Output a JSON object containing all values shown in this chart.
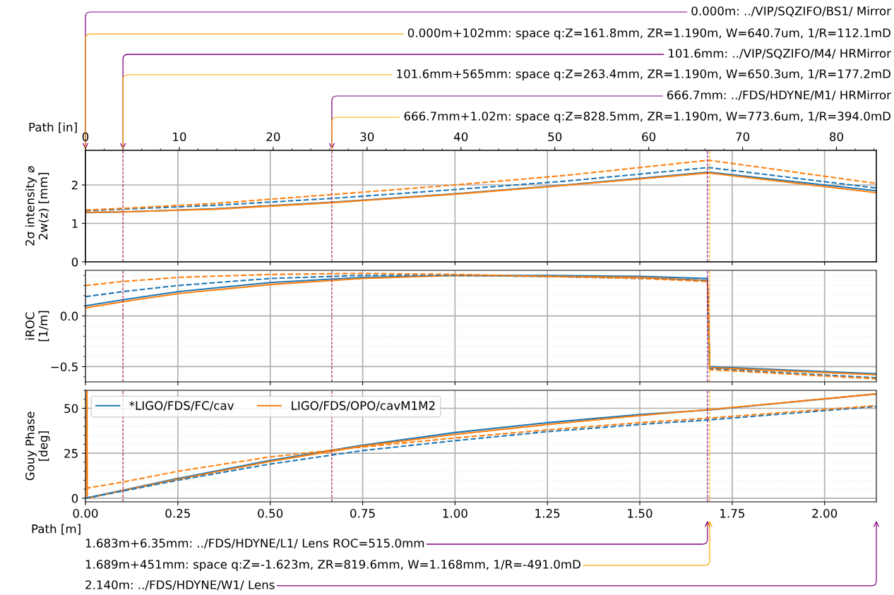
{
  "chart_data": [
    {
      "type": "line",
      "ylabel": "2σ intensity ⌀\n2w(z) [mm]",
      "x2label": "Path [in]",
      "xlim": [
        0,
        2.14
      ],
      "ylim": [
        0,
        2.9
      ],
      "yticks": [
        0,
        1,
        2
      ],
      "x2lim": [
        0,
        84.25
      ],
      "x2ticks": [
        0,
        10,
        20,
        30,
        40,
        50,
        60,
        70,
        80
      ],
      "tick_labels": "y",
      "grid": true,
      "legend": false,
      "series": [
        {
          "color": "#1f77b4",
          "line_style": "solid",
          "x": [
            0,
            0.1016,
            0.35,
            0.6667,
            1.0,
            1.3,
            1.683,
            1.689,
            2.14
          ],
          "values": [
            1.28,
            1.3,
            1.38,
            1.55,
            1.77,
            2.0,
            2.33,
            2.33,
            1.85
          ]
        },
        {
          "color": "#ff7f0e",
          "line_style": "solid",
          "x": [
            0,
            0.1016,
            0.35,
            0.6667,
            1.0,
            1.3,
            1.683,
            1.689,
            2.14
          ],
          "values": [
            1.29,
            1.3,
            1.37,
            1.54,
            1.76,
            1.99,
            2.31,
            2.31,
            1.8
          ]
        },
        {
          "color": "#1f77b4",
          "line_style": "dashed",
          "x": [
            0,
            0.1016,
            0.35,
            0.6667,
            1.0,
            1.3,
            1.683,
            1.689,
            2.14
          ],
          "values": [
            1.33,
            1.37,
            1.47,
            1.65,
            1.88,
            2.1,
            2.45,
            2.45,
            1.92
          ]
        },
        {
          "color": "#ff7f0e",
          "line_style": "dashed",
          "x": [
            0,
            0.1016,
            0.35,
            0.6667,
            1.0,
            1.3,
            1.683,
            1.689,
            2.14
          ],
          "values": [
            1.35,
            1.39,
            1.52,
            1.75,
            2.0,
            2.25,
            2.64,
            2.64,
            2.04
          ]
        }
      ],
      "ref_lines": [
        {
          "axis": "x",
          "value": 0.1016,
          "color": "#a0103c",
          "line_style": "dashed"
        },
        {
          "axis": "x",
          "value": 0.6667,
          "color": "#a0103c",
          "line_style": "dashed"
        },
        {
          "axis": "x",
          "value": 1.683,
          "color": "#800080",
          "line_style": "dashed"
        },
        {
          "axis": "x",
          "value": 1.689,
          "color": "#ffa500",
          "line_style": "dashed"
        }
      ],
      "annotations": [
        "0.000m: ../VIP/SQZIFO/BS1/ Mirror",
        "0.000m+102mm: space q:Z=161.8mm, ZR=1.190m, W=640.7um, 1/R=112.1mD",
        "101.6mm: ../VIP/SQZIFO/M4/ HRMirror",
        "101.6mm+565mm: space q:Z=263.4mm, ZR=1.190m, W=650.3um, 1/R=177.2mD",
        "666.7mm: ../FDS/HDYNE/M1/ HRMirror",
        "666.7mm+1.02m: space q:Z=828.5mm, ZR=1.190m, W=773.6um, 1/R=394.0mD"
      ]
    },
    {
      "type": "line",
      "ylabel": "iROC\n[1/m]",
      "xlim": [
        0,
        2.14
      ],
      "ylim": [
        -0.65,
        0.45
      ],
      "yticks": [
        {
          "value": -0.5,
          "label": "−0.5"
        },
        {
          "value": 0,
          "label": "0.0"
        }
      ],
      "tick_labels": "y",
      "grid": true,
      "legend": false,
      "series": [
        {
          "color": "#1f77b4",
          "line_style": "solid",
          "x": [
            0,
            0.1016,
            0.25,
            0.5,
            0.75,
            1.0,
            1.25,
            1.5,
            1.683,
            1.689,
            2.14
          ],
          "values": [
            0.1,
            0.16,
            0.24,
            0.33,
            0.38,
            0.4,
            0.4,
            0.39,
            0.37,
            -0.5,
            -0.57
          ]
        },
        {
          "color": "#ff7f0e",
          "line_style": "solid",
          "x": [
            0,
            0.1016,
            0.25,
            0.5,
            0.75,
            1.0,
            1.25,
            1.5,
            1.683,
            1.689,
            2.14
          ],
          "values": [
            0.08,
            0.14,
            0.22,
            0.31,
            0.37,
            0.4,
            0.39,
            0.38,
            0.35,
            -0.51,
            -0.58
          ]
        },
        {
          "color": "#1f77b4",
          "line_style": "dashed",
          "x": [
            0,
            0.1016,
            0.25,
            0.5,
            0.75,
            1.0,
            1.25,
            1.5,
            1.683,
            1.689,
            2.14
          ],
          "values": [
            0.19,
            0.24,
            0.3,
            0.37,
            0.4,
            0.4,
            0.39,
            0.37,
            0.35,
            -0.52,
            -0.61
          ]
        },
        {
          "color": "#ff7f0e",
          "line_style": "dashed",
          "x": [
            0,
            0.1016,
            0.25,
            0.5,
            0.75,
            1.0,
            1.25,
            1.5,
            1.683,
            1.689,
            2.14
          ],
          "values": [
            0.3,
            0.34,
            0.38,
            0.41,
            0.42,
            0.41,
            0.39,
            0.37,
            0.34,
            -0.53,
            -0.62
          ]
        }
      ],
      "ref_lines": [
        {
          "axis": "x",
          "value": 0.1016,
          "color": "#a0103c",
          "line_style": "dashed"
        },
        {
          "axis": "x",
          "value": 0.6667,
          "color": "#a0103c",
          "line_style": "dashed"
        },
        {
          "axis": "x",
          "value": 1.683,
          "color": "#800080",
          "line_style": "dashed"
        },
        {
          "axis": "x",
          "value": 1.689,
          "color": "#ffa500",
          "line_style": "dashed"
        }
      ]
    },
    {
      "type": "line",
      "ylabel": "Gouy Phase\n[deg]",
      "xlabel": "Path [m]",
      "xlim": [
        0,
        2.14
      ],
      "xticks": [
        {
          "value": 0,
          "label": "0.00"
        },
        {
          "value": 0.25,
          "label": "0.25"
        },
        {
          "value": 0.5,
          "label": "0.50"
        },
        {
          "value": 0.75,
          "label": "0.75"
        },
        {
          "value": 1.0,
          "label": "1.00"
        },
        {
          "value": 1.25,
          "label": "1.25"
        },
        {
          "value": 1.5,
          "label": "1.50"
        },
        {
          "value": 1.75,
          "label": "1.75"
        },
        {
          "value": 2.0,
          "label": "2.00"
        }
      ],
      "ylim": [
        -2,
        60
      ],
      "yticks": [
        0,
        25,
        50
      ],
      "grid": true,
      "legend": "top left",
      "series": [
        {
          "name": "*LIGO/FDS/FC/cav",
          "color": "#1f77b4",
          "line_style": "solid",
          "x": [
            0,
            0.1016,
            0.25,
            0.5,
            0.75,
            1.0,
            1.25,
            1.5,
            1.683,
            2.14
          ],
          "values": [
            0,
            4.5,
            11,
            21,
            29.5,
            36.5,
            42,
            46.5,
            49,
            58
          ]
        },
        {
          "name": "LIGO/FDS/OPO/cavM1M2",
          "color": "#ff7f0e",
          "line_style": "solid",
          "x": [
            0,
            0.004,
            0.005,
            0.1016,
            0.25,
            0.5,
            0.75,
            1.0,
            1.25,
            1.5,
            1.683,
            2.14
          ],
          "values": [
            0,
            60,
            0,
            4.3,
            10.5,
            20.5,
            29,
            35.5,
            41,
            46,
            49.2,
            58
          ]
        },
        {
          "color": "#1f77b4",
          "line_style": "dashed",
          "x": [
            0,
            0.1016,
            0.25,
            0.5,
            0.75,
            1.0,
            1.25,
            1.5,
            1.683,
            2.14
          ],
          "values": [
            0,
            4,
            10,
            19,
            26.5,
            32,
            37,
            41,
            43.5,
            51
          ]
        },
        {
          "color": "#ff7f0e",
          "line_style": "dashed",
          "x": [
            0,
            0.1016,
            0.25,
            0.5,
            0.75,
            1.0,
            1.25,
            1.5,
            1.683,
            2.14
          ],
          "values": [
            5.5,
            9,
            15,
            23,
            28.5,
            33.5,
            38,
            42,
            44.5,
            51.5
          ]
        }
      ],
      "ref_lines": [
        {
          "axis": "x",
          "value": 0.1016,
          "color": "#a0103c",
          "line_style": "dashed"
        },
        {
          "axis": "x",
          "value": 0.6667,
          "color": "#a0103c",
          "line_style": "dashed"
        },
        {
          "axis": "x",
          "value": 1.683,
          "color": "#800080",
          "line_style": "dashed"
        },
        {
          "axis": "x",
          "value": 1.689,
          "color": "#ffa500",
          "line_style": "dashed"
        }
      ],
      "annotations": [
        "1.683m+6.35mm: ../FDS/HDYNE/L1/ Lens ROC=515.0mm",
        "1.689m+451mm: space q:Z=-1.623m, ZR=819.6mm, W=1.168mm, 1/R=-491.0mD",
        "2.140m: ../FDS/HDYNE/W1/ Lens"
      ]
    }
  ]
}
